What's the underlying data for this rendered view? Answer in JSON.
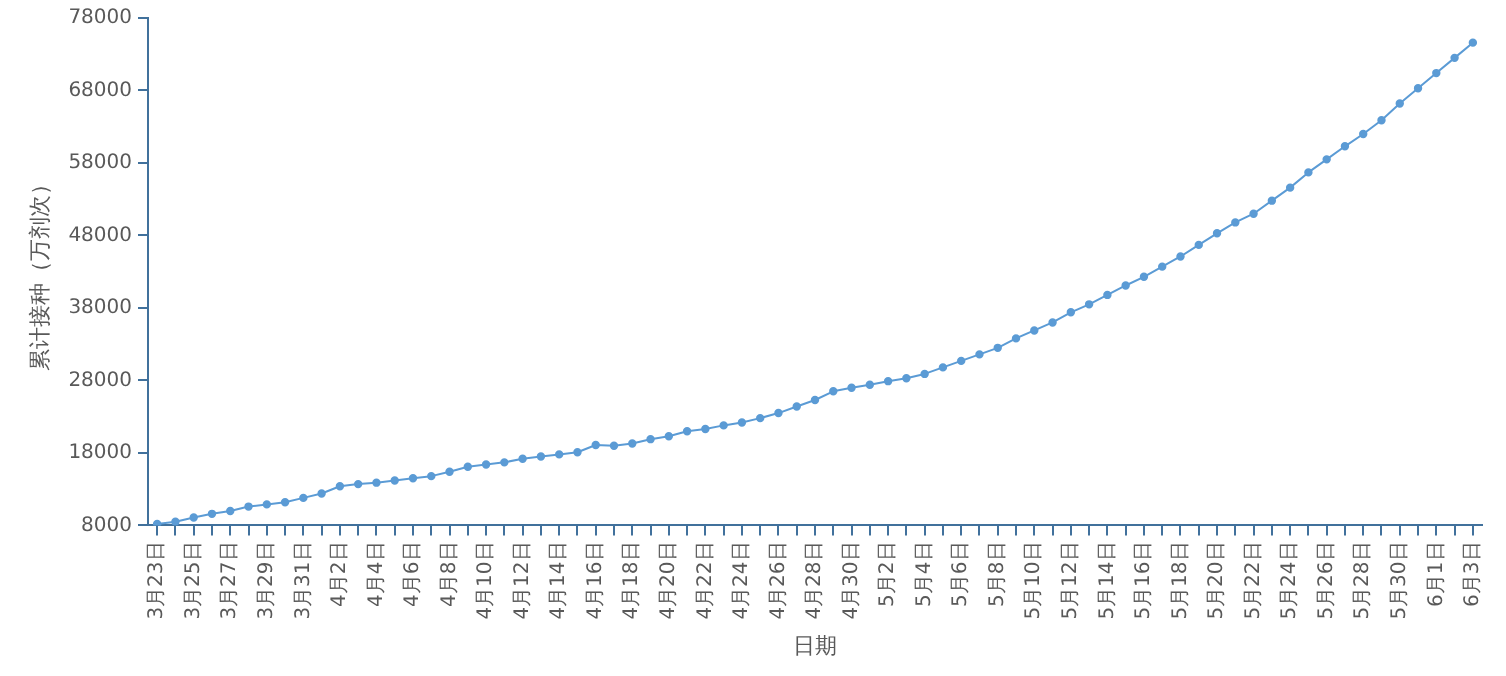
{
  "chart_data": {
    "type": "line",
    "xlabel": "日期",
    "ylabel": "累计接种（万剂次）",
    "categories": [
      "3月23日",
      null,
      "3月25日",
      null,
      "3月27日",
      null,
      "3月29日",
      null,
      "3月31日",
      null,
      "4月2日",
      null,
      "4月4日",
      null,
      "4月6日",
      null,
      "4月8日",
      null,
      "4月10日",
      null,
      "4月12日",
      null,
      "4月14日",
      null,
      "4月16日",
      null,
      "4月18日",
      null,
      "4月20日",
      null,
      "4月22日",
      null,
      "4月24日",
      null,
      "4月26日",
      null,
      "4月28日",
      null,
      "4月30日",
      null,
      "5月2日",
      null,
      "5月4日",
      null,
      "5月6日",
      null,
      "5月8日",
      null,
      "5月10日",
      null,
      "5月12日",
      null,
      "5月14日",
      null,
      "5月16日",
      null,
      "5月18日",
      null,
      "5月20日",
      null,
      "5月22日",
      null,
      "5月24日",
      null,
      "5月26日",
      null,
      "5月28日",
      null,
      "5月30日",
      null,
      "6月1日",
      null,
      "6月3日"
    ],
    "series": [
      {
        "color": "#5b9bd5",
        "values": [
          8200,
          8500,
          9100,
          9600,
          10000,
          10600,
          10900,
          11200,
          11800,
          12400,
          13400,
          13700,
          13900,
          14200,
          14500,
          14800,
          15400,
          16100,
          16400,
          16700,
          17200,
          17500,
          17800,
          18100,
          19100,
          19000,
          19300,
          19900,
          20300,
          21000,
          21300,
          21800,
          22200,
          22800,
          23500,
          24400,
          25300,
          26500,
          27000,
          27400,
          27900,
          28300,
          28900,
          29800,
          30700,
          31600,
          32500,
          33800,
          34900,
          36000,
          37400,
          38500,
          39800,
          41100,
          42300,
          43700,
          45100,
          46700,
          48300,
          49800,
          51000,
          52800,
          54600,
          56700,
          58500,
          60300,
          62000,
          63900,
          66200,
          68300,
          70400,
          72500,
          74600
        ]
      }
    ],
    "ylim": [
      8000,
      78000
    ],
    "yticks": [
      8000,
      18000,
      28000,
      38000,
      48000,
      58000,
      68000,
      78000
    ],
    "grid": false,
    "legend": false,
    "marker": "circle",
    "line_style": "solid"
  }
}
